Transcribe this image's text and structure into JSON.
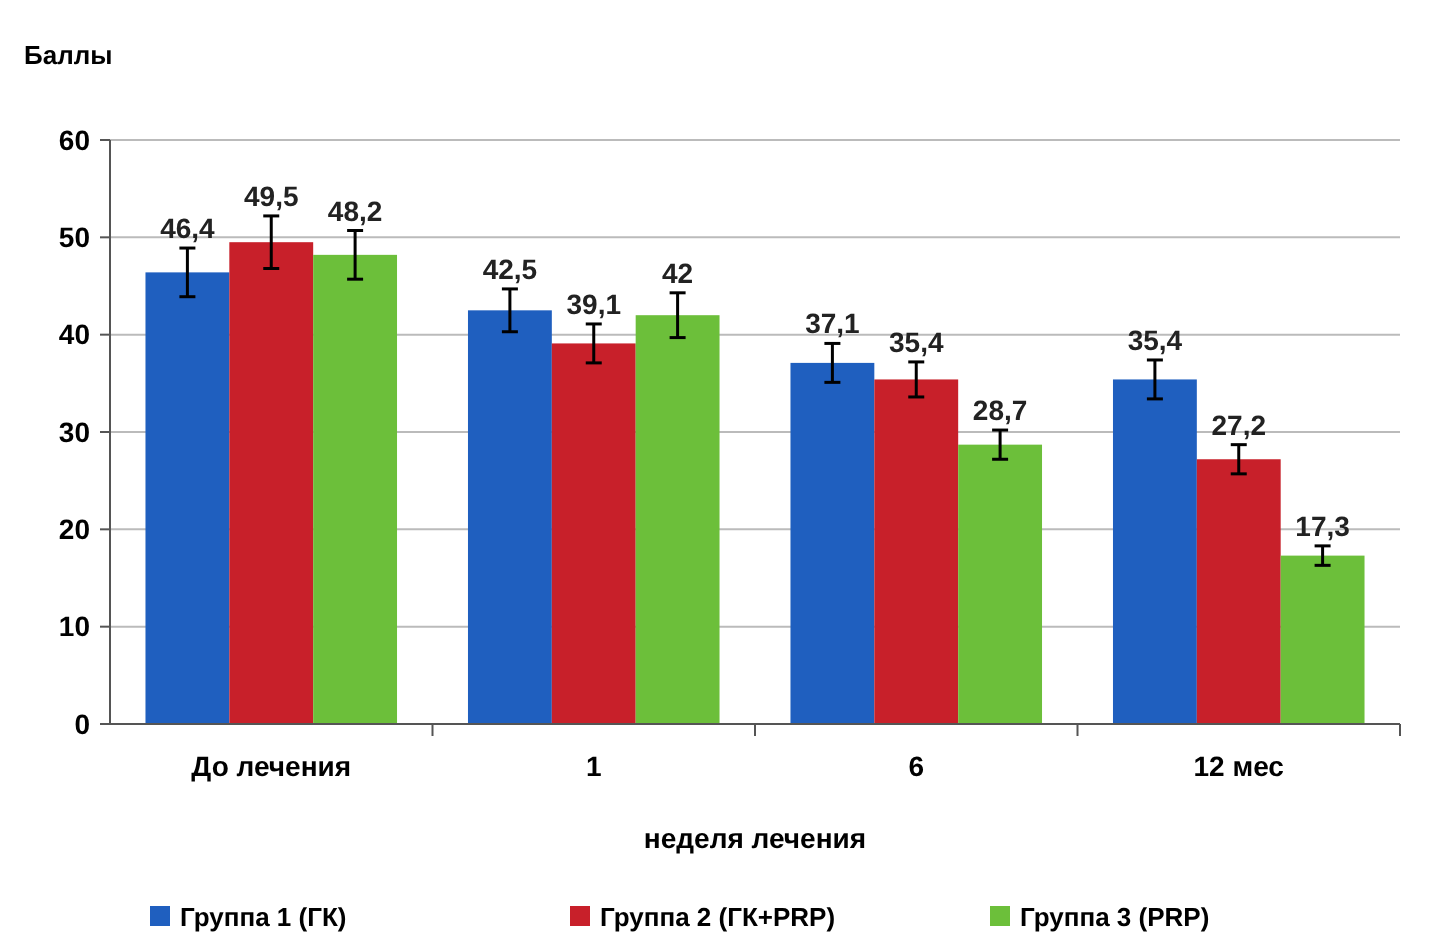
{
  "chart_data": {
    "type": "bar",
    "ylabel": "Баллы",
    "xlabel": "неделя лечения",
    "categories": [
      "До лечения",
      "1",
      "6",
      "12 мес"
    ],
    "series": [
      {
        "name": "Группа 1 (ГК)",
        "color": "#1f5fbf",
        "values": [
          46.4,
          42.5,
          37.1,
          35.4
        ],
        "errors": [
          2.5,
          2.2,
          2,
          2
        ],
        "value_labels": [
          "46,4",
          "42,5",
          "37,1",
          "35,4"
        ]
      },
      {
        "name": "Группа 2 (ГК+PRP)",
        "color": "#c8202a",
        "values": [
          49.5,
          39.1,
          35.4,
          27.2
        ],
        "errors": [
          2.7,
          2,
          1.8,
          1.5
        ],
        "value_labels": [
          "49,5",
          "39,1",
          "35,4",
          "27,2"
        ]
      },
      {
        "name": "Группа 3 (PRP)",
        "color": "#6cbf3a",
        "values": [
          48.2,
          42,
          28.7,
          17.3
        ],
        "errors": [
          2.5,
          2.3,
          1.5,
          1
        ],
        "value_labels": [
          "48,2",
          "42",
          "28,7",
          "17,3"
        ]
      }
    ],
    "ylim": [
      0,
      60
    ],
    "yticks": [
      0,
      10,
      20,
      30,
      40,
      50,
      60
    ],
    "grid": "y",
    "legend": "bottom"
  }
}
